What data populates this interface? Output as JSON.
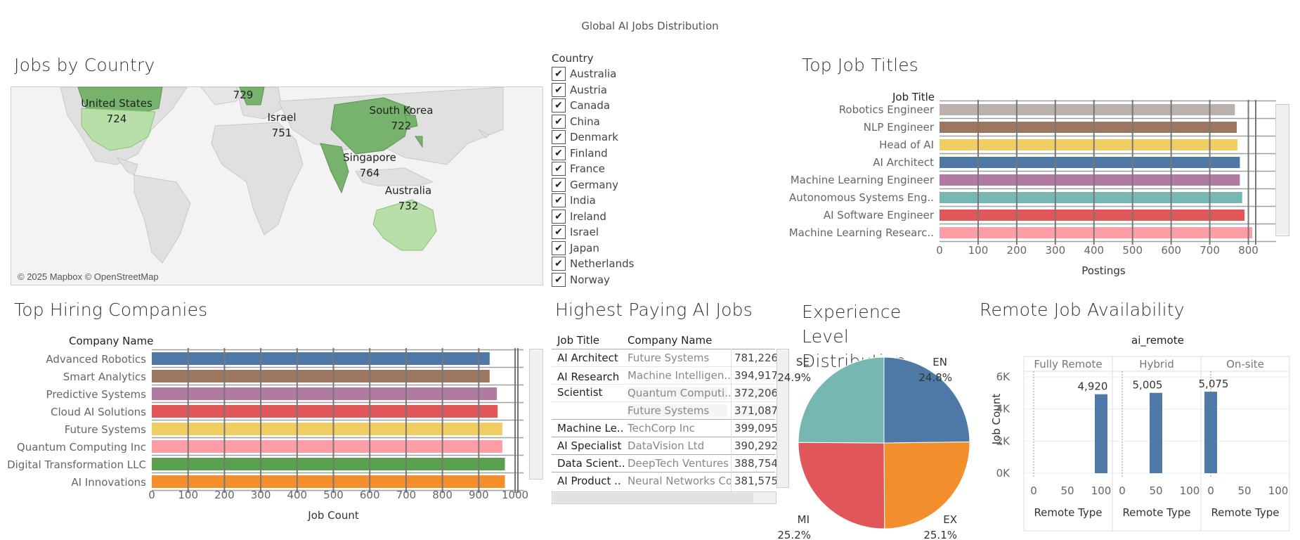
{
  "dashboard_title": "Global AI Jobs Distribution",
  "map": {
    "title": "Jobs by Country",
    "credit": "© 2025 Mapbox © OpenStreetMap",
    "labels": [
      {
        "name": "United States",
        "value": "724"
      },
      {
        "name": "",
        "value": "729"
      },
      {
        "name": "Israel",
        "value": "751"
      },
      {
        "name": "South Korea",
        "value": "722"
      },
      {
        "name": "Singapore",
        "value": "764"
      },
      {
        "name": "Australia",
        "value": "732"
      }
    ]
  },
  "filter": {
    "title": "Country",
    "items": [
      "Australia",
      "Austria",
      "Canada",
      "China",
      "Denmark",
      "Finland",
      "France",
      "Germany",
      "India",
      "Ireland",
      "Israel",
      "Japan",
      "Netherlands",
      "Norway"
    ]
  },
  "top_titles": {
    "title": "Top Job Titles",
    "column_header": "Job Title",
    "axis_title": "Postings",
    "ticks": [
      "0",
      "100",
      "200",
      "300",
      "400",
      "500",
      "600",
      "700",
      "800"
    ],
    "chart_data": {
      "type": "bar",
      "categories": [
        "Robotics Engineer",
        "NLP Engineer",
        "Head of AI",
        "AI Architect",
        "Machine Learning Engineer",
        "Autonomous Systems Eng..",
        "AI Software Engineer",
        "Machine Learning Researc.."
      ],
      "values": [
        765,
        770,
        772,
        778,
        778,
        784,
        790,
        810
      ],
      "colors": [
        "#bab0ac",
        "#9d7660",
        "#f1ce63",
        "#4e79a7",
        "#b07aa1",
        "#76b7b2",
        "#e15759",
        "#ff9da7"
      ],
      "xlim": [
        0,
        850
      ]
    }
  },
  "top_companies": {
    "title": "Top Hiring Companies",
    "column_header": "Company Name",
    "axis_title": "Job Count",
    "ticks": [
      "0",
      "100",
      "200",
      "300",
      "400",
      "500",
      "600",
      "700",
      "800",
      "900",
      "1000"
    ],
    "chart_data": {
      "type": "bar",
      "categories": [
        "Advanced Robotics",
        "Smart Analytics",
        "Predictive Systems",
        "Cloud AI Solutions",
        "Future Systems",
        "Quantum Computing Inc",
        "Digital Transformation LLC",
        "AI Innovations"
      ],
      "values": [
        930,
        930,
        950,
        952,
        965,
        965,
        972,
        972
      ],
      "colors": [
        "#4e79a7",
        "#9d7660",
        "#b07aa1",
        "#e15759",
        "#f1ce63",
        "#ff9da7",
        "#59a14f",
        "#f28e2b"
      ],
      "xlim": [
        0,
        1000
      ]
    }
  },
  "highest_paying": {
    "title": "Highest Paying AI Jobs",
    "headers": [
      "Job Title",
      "Company Name"
    ],
    "rows": [
      {
        "title": "AI Architect",
        "company": "Future Systems",
        "salary": "781,226"
      },
      {
        "title": "AI Research Scientist",
        "company": "Machine Intelligen..",
        "salary": "394,917"
      },
      {
        "title": "",
        "company": "Quantum Computi..",
        "salary": "372,206"
      },
      {
        "title": "",
        "company": "Future Systems",
        "salary": "371,087"
      },
      {
        "title": "Machine Le..",
        "company": "TechCorp Inc",
        "salary": "399,095"
      },
      {
        "title": "AI Specialist",
        "company": "DataVision Ltd",
        "salary": "390,292"
      },
      {
        "title": "Data Scient..",
        "company": "DeepTech Ventures",
        "salary": "388,754"
      },
      {
        "title": "AI Product ..",
        "company": "Neural Networks Co",
        "salary": "381,575"
      }
    ]
  },
  "experience": {
    "title": "Experience Level Distribution",
    "chart_data": {
      "type": "pie",
      "categories": [
        "EN",
        "EX",
        "MI",
        "SE"
      ],
      "values": [
        24.8,
        25.1,
        25.2,
        24.9
      ],
      "labels": [
        "24.8%",
        "25.1%",
        "25.2%",
        "24.9%"
      ],
      "colors": [
        "#4e79a7",
        "#f28e2b",
        "#e15759",
        "#76b7b2"
      ]
    }
  },
  "remote": {
    "title": "Remote Job Availability",
    "top_header": "ai_remote",
    "y_axis_title": "Job Count",
    "x_axis_title": "Remote Type",
    "y_ticks": [
      "6K",
      "4K",
      "2K",
      "0K"
    ],
    "chart_data": {
      "type": "bar",
      "panels": [
        {
          "name": "Fully Remote",
          "x": 100,
          "value": 4920,
          "label": "4,920",
          "ticks": [
            "0",
            "50",
            "100"
          ]
        },
        {
          "name": "Hybrid",
          "x": 50,
          "value": 5005,
          "label": "5,005",
          "ticks": [
            "0",
            "50",
            "100"
          ]
        },
        {
          "name": "On-site",
          "x": 0,
          "value": 5075,
          "label": "5,075",
          "ticks": [
            "0",
            "50",
            "100"
          ]
        }
      ],
      "ylim": [
        0,
        6000
      ],
      "color": "#4e79a7"
    }
  }
}
